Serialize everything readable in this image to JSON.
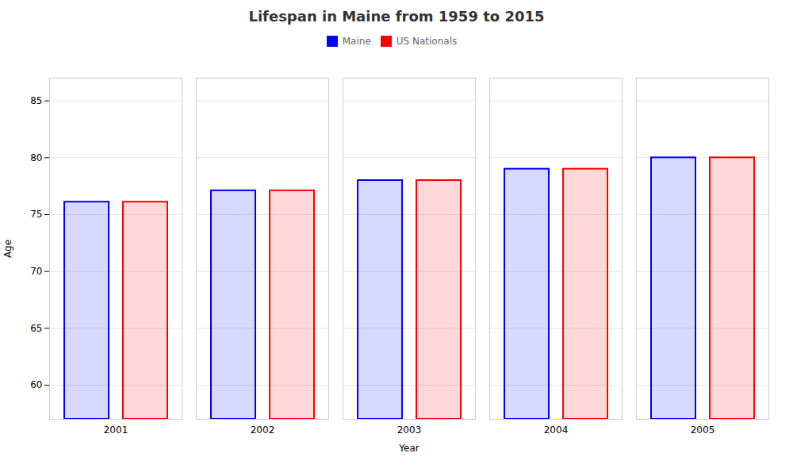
{
  "chart_data": {
    "type": "bar",
    "title": "Lifespan in Maine from 1959 to 2015",
    "xlabel": "Year",
    "ylabel": "Age",
    "categories": [
      "2001",
      "2002",
      "2003",
      "2004",
      "2005"
    ],
    "series": [
      {
        "name": "Maine",
        "color": "#0000ff",
        "values": [
          76.1,
          77.1,
          78.0,
          79.0,
          80.0
        ]
      },
      {
        "name": "US Nationals",
        "color": "#ff0000",
        "values": [
          76.1,
          77.1,
          78.0,
          79.0,
          80.0
        ]
      }
    ],
    "ylim": [
      57,
      87
    ],
    "yticks": [
      60,
      65,
      70,
      75,
      80,
      85
    ],
    "grid": true,
    "legend": "top"
  }
}
